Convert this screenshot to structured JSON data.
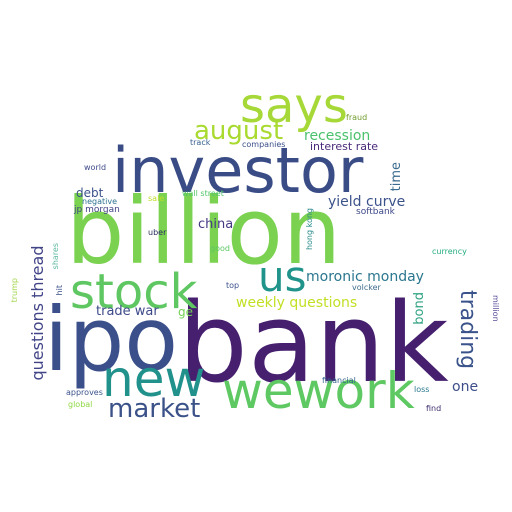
{
  "words": [
    {
      "text": "bank",
      "color": "#46206f"
    },
    {
      "text": "billion",
      "color": "#7bd150"
    },
    {
      "text": "ipo",
      "color": "#3b4f8a"
    },
    {
      "text": "investor",
      "color": "#3a4c86"
    },
    {
      "text": "stock",
      "color": "#5fc761"
    },
    {
      "text": "new",
      "color": "#21918c"
    },
    {
      "text": "wework",
      "color": "#5ec962"
    },
    {
      "text": "says",
      "color": "#a6d837"
    },
    {
      "text": "us",
      "color": "#20938a"
    },
    {
      "text": "market",
      "color": "#3b5289"
    },
    {
      "text": "august",
      "color": "#a9da2f"
    },
    {
      "text": "trading",
      "color": "#3a538b"
    },
    {
      "text": "questions thread",
      "color": "#414487"
    },
    {
      "text": "moronic monday",
      "color": "#2a768e"
    },
    {
      "text": "weekly questions",
      "color": "#c2df23"
    },
    {
      "text": "yield curve",
      "color": "#3b528b"
    },
    {
      "text": "recession",
      "color": "#4ac16d"
    },
    {
      "text": "trade war",
      "color": "#3e4a89"
    },
    {
      "text": "china",
      "color": "#443983"
    },
    {
      "text": "debt",
      "color": "#3b528b"
    },
    {
      "text": "interest rate",
      "color": "#482878"
    },
    {
      "text": "one",
      "color": "#3d4e8a"
    },
    {
      "text": "time",
      "color": "#3b6b8e"
    },
    {
      "text": "bond",
      "color": "#31a383"
    },
    {
      "text": "ge",
      "color": "#75d054"
    },
    {
      "text": "jp morgan",
      "color": "#414487"
    },
    {
      "text": "softbank",
      "color": "#3e4989"
    },
    {
      "text": "hong kong",
      "color": "#2a8c8b"
    },
    {
      "text": "fraud",
      "color": "#6f9c2b"
    },
    {
      "text": "track",
      "color": "#355f8d"
    },
    {
      "text": "companies",
      "color": "#3b4f8a"
    },
    {
      "text": "world",
      "color": "#3e4a89"
    },
    {
      "text": "wall street",
      "color": "#52c569"
    },
    {
      "text": "sale",
      "color": "#bddf26"
    },
    {
      "text": "negative",
      "color": "#2c728e"
    },
    {
      "text": "uber",
      "color": "#2a2c61"
    },
    {
      "text": "good",
      "color": "#5cc863"
    },
    {
      "text": "shares",
      "color": "#5cb8a0"
    },
    {
      "text": "currency",
      "color": "#25ac82"
    },
    {
      "text": "trump",
      "color": "#a2d64b"
    },
    {
      "text": "hit",
      "color": "#3b5289"
    },
    {
      "text": "top",
      "color": "#3b528b"
    },
    {
      "text": "volcker",
      "color": "#3f6d8d"
    },
    {
      "text": "million",
      "color": "#5b4e9a"
    },
    {
      "text": "approves",
      "color": "#3b528b"
    },
    {
      "text": "global",
      "color": "#8fd744"
    },
    {
      "text": "financial",
      "color": "#33638d"
    },
    {
      "text": "loss",
      "color": "#2a788e"
    },
    {
      "text": "find",
      "color": "#3e2d6f"
    }
  ]
}
